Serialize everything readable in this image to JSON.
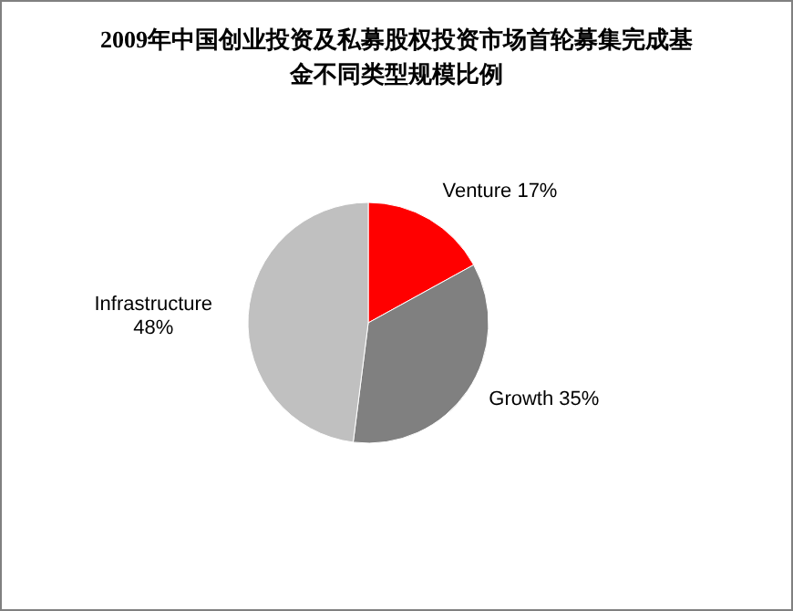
{
  "chart_data": {
    "type": "pie",
    "title": "2009年中国创业投资及私募股权投资市场首轮募集完成基金不同类型规模比例",
    "categories": [
      "Venture",
      "Growth",
      "Infrastructure"
    ],
    "values": [
      17,
      35,
      48
    ],
    "colors": [
      "#ff0000",
      "#808080",
      "#c0c0c0"
    ],
    "value_labels": [
      "17%",
      "35%",
      "48%"
    ]
  }
}
